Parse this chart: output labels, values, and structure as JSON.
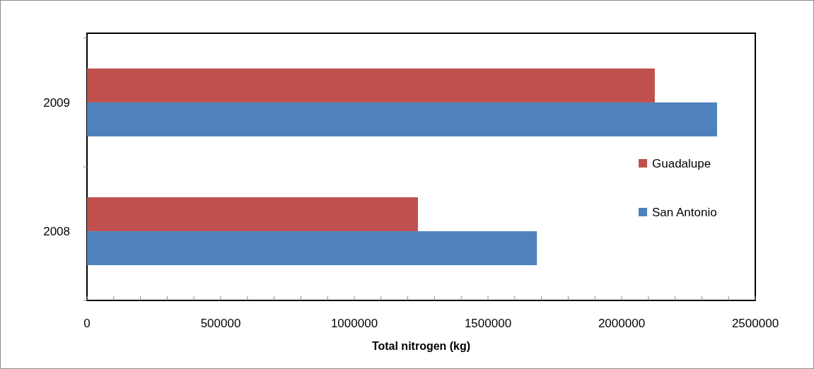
{
  "chart_data": {
    "type": "bar",
    "orientation": "horizontal",
    "xlabel": "Total nitrogen (kg)",
    "categories": [
      "2009",
      "2008"
    ],
    "series": [
      {
        "name": "Guadalupe",
        "color": "#c0504d",
        "values": [
          2124000,
          1238000
        ]
      },
      {
        "name": "San Antonio",
        "color": "#4f81bd",
        "values": [
          2357000,
          1683000
        ]
      }
    ],
    "xlim": [
      0,
      2500000
    ],
    "xticks": [
      0,
      {
        "value": 100000,
        "label": null
      },
      {
        "value": 200000,
        "label": null
      },
      {
        "value": 300000,
        "label": null
      },
      {
        "value": 400000,
        "label": null
      },
      500000,
      {
        "value": 600000,
        "label": null
      },
      {
        "value": 700000,
        "label": null
      },
      {
        "value": 800000,
        "label": null
      },
      {
        "value": 900000,
        "label": null
      },
      1000000,
      {
        "value": 1100000,
        "label": null
      },
      {
        "value": 1200000,
        "label": null
      },
      {
        "value": 1300000,
        "label": null
      },
      {
        "value": 1400000,
        "label": null
      },
      1500000,
      {
        "value": 1600000,
        "label": null
      },
      {
        "value": 1700000,
        "label": null
      },
      {
        "value": 1800000,
        "label": null
      },
      {
        "value": 1900000,
        "label": null
      },
      2000000,
      {
        "value": 2100000,
        "label": null
      },
      {
        "value": 2200000,
        "label": null
      },
      {
        "value": 2300000,
        "label": null
      },
      {
        "value": 2400000,
        "label": null
      },
      2500000
    ],
    "legend": "right",
    "grid": false
  }
}
